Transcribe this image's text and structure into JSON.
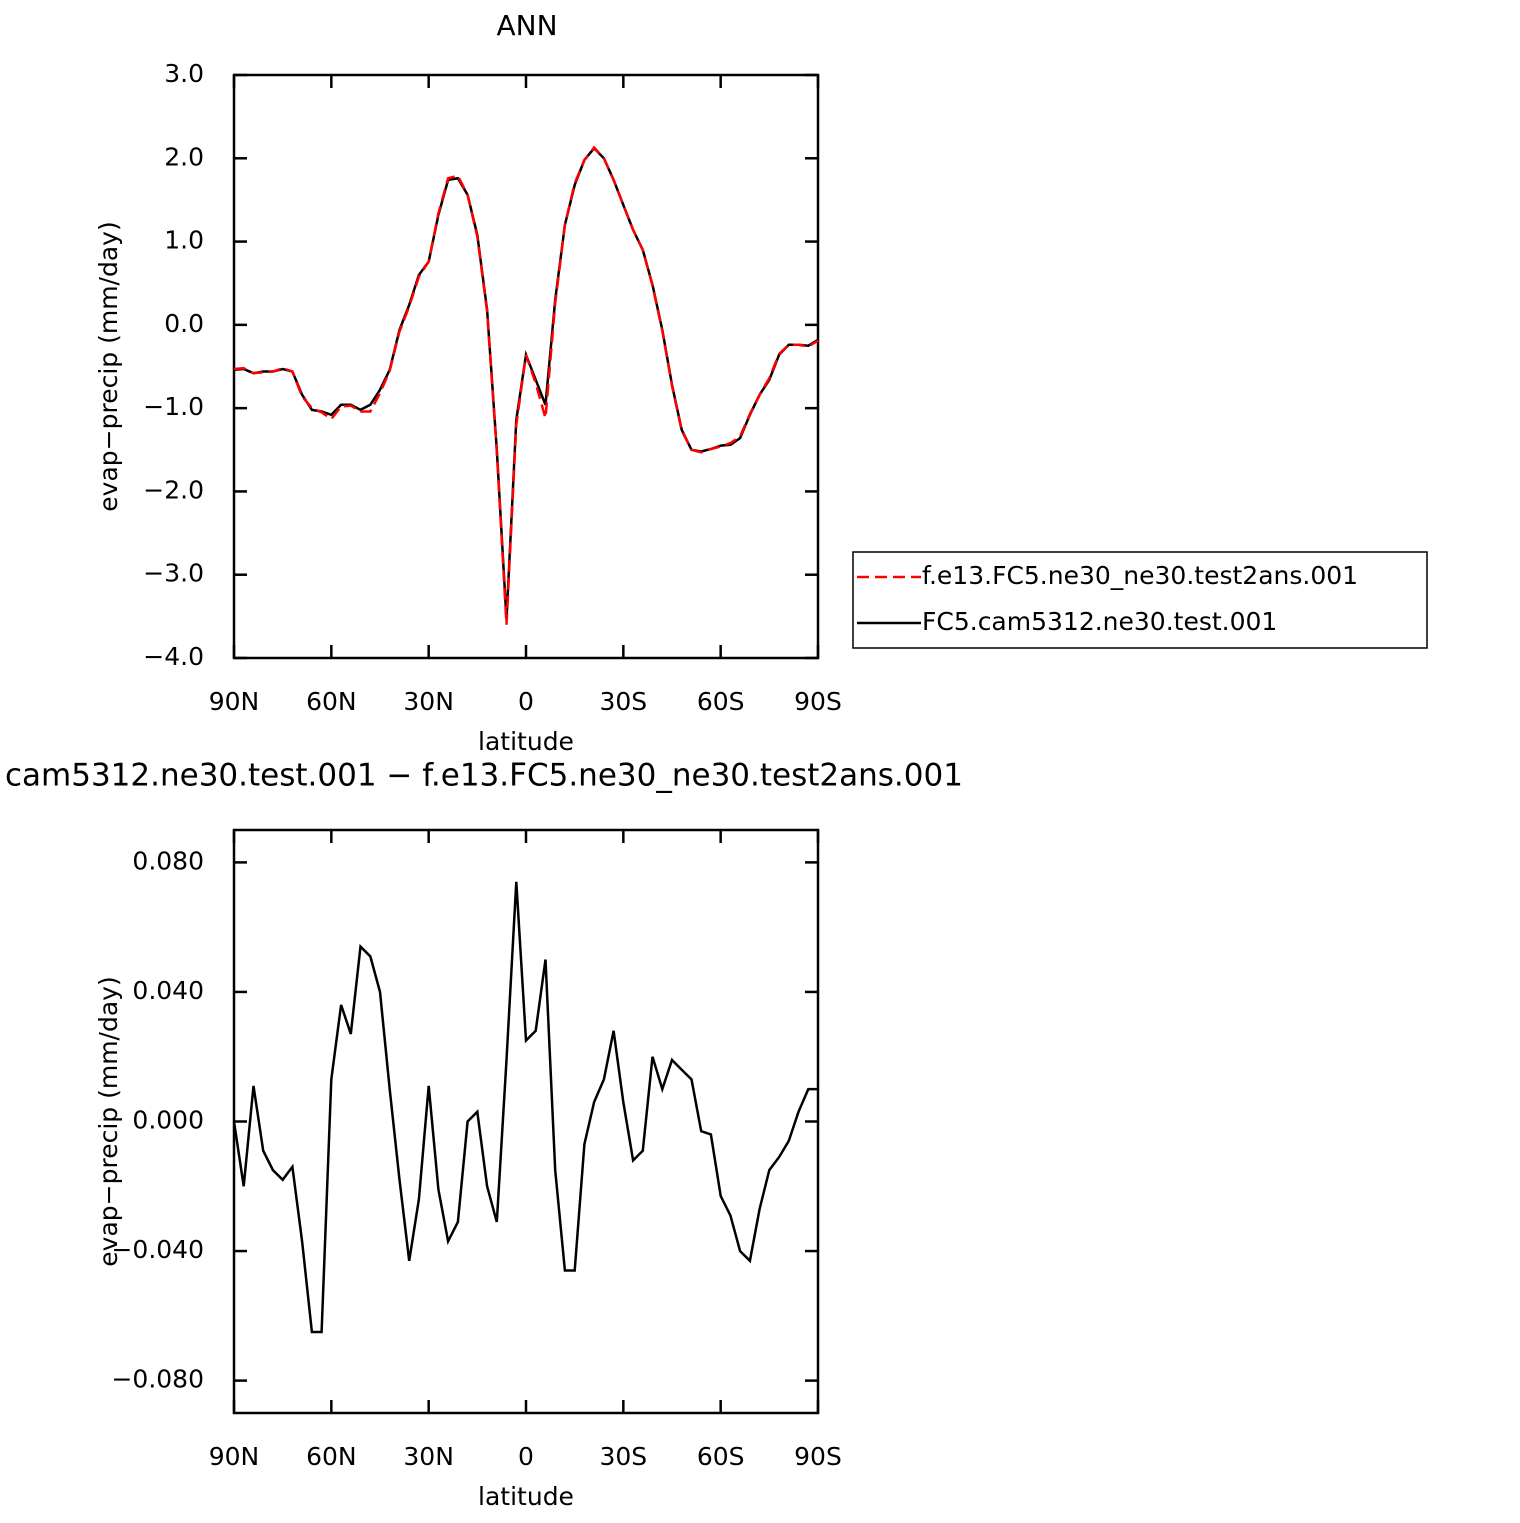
{
  "chart_data": [
    {
      "type": "line",
      "title": "ANN",
      "xlabel": "latitude",
      "ylabel": "evap−precip (mm/day)",
      "x": [
        90,
        87,
        84,
        81,
        78,
        75,
        72,
        69,
        66,
        63,
        60,
        57,
        54,
        51,
        48,
        45,
        42,
        39,
        36,
        33,
        30,
        27,
        24,
        21,
        18,
        15,
        12,
        9,
        6,
        3,
        0,
        -3,
        -6,
        -9,
        -12,
        -15,
        -18,
        -21,
        -24,
        -27,
        -30,
        -33,
        -36,
        -39,
        -42,
        -45,
        -48,
        -51,
        -54,
        -57,
        -60,
        -63,
        -66,
        -69,
        -72,
        -75,
        -78,
        -81,
        -84,
        -87,
        -90
      ],
      "series": [
        {
          "name": "f.e13.FC5.ne30_ne30.test2ans.001",
          "color": "#ff0000",
          "linestyle": "dashed",
          "values": [
            -0.53,
            -0.52,
            -0.58,
            -0.57,
            -0.56,
            -0.52,
            -0.56,
            -0.86,
            -1.0,
            -1.05,
            -1.13,
            -0.98,
            -0.97,
            -1.04,
            -1.04,
            -0.82,
            -0.55,
            -0.08,
            0.22,
            0.58,
            0.76,
            1.34,
            1.76,
            1.79,
            1.56,
            1.06,
            0.16,
            -1.52,
            -3.6,
            -1.2,
            -0.36,
            -0.7,
            -1.12,
            0.26,
            1.2,
            1.7,
            1.98,
            2.13,
            2.0,
            1.74,
            1.44,
            1.14,
            0.9,
            0.47,
            -0.07,
            -0.73,
            -1.27,
            -1.5,
            -1.53,
            -1.49,
            -1.46,
            -1.42,
            -1.34,
            -1.07,
            -0.84,
            -0.64,
            -0.35,
            -0.24,
            -0.24,
            -0.26,
            -0.19
          ]
        },
        {
          "name": "FC5.cam5312.ne30.test.001",
          "color": "#000000",
          "linestyle": "solid",
          "values": [
            -0.54,
            -0.53,
            -0.58,
            -0.56,
            -0.56,
            -0.53,
            -0.56,
            -0.84,
            -1.02,
            -1.04,
            -1.08,
            -0.96,
            -0.96,
            -1.02,
            -0.96,
            -0.78,
            -0.54,
            -0.06,
            0.24,
            0.6,
            0.76,
            1.32,
            1.74,
            1.76,
            1.56,
            1.08,
            0.18,
            -1.5,
            -3.54,
            -1.14,
            -0.36,
            -0.66,
            -0.96,
            0.3,
            1.2,
            1.68,
            1.98,
            2.12,
            2.0,
            1.74,
            1.44,
            1.14,
            0.9,
            0.48,
            -0.06,
            -0.72,
            -1.26,
            -1.5,
            -1.52,
            -1.49,
            -1.45,
            -1.44,
            -1.36,
            -1.08,
            -0.84,
            -0.66,
            -0.36,
            -0.24,
            -0.24,
            -0.25,
            -0.18
          ]
        }
      ],
      "xlim": [
        90,
        -90
      ],
      "xticks": [
        {
          "value": 90,
          "label": "90N"
        },
        {
          "value": 60,
          "label": "60N"
        },
        {
          "value": 30,
          "label": "30N"
        },
        0,
        {
          "value": -30,
          "label": "30S"
        },
        {
          "value": -60,
          "label": "60S"
        },
        {
          "value": -90,
          "label": "90S"
        }
      ],
      "ylim": [
        -4,
        3
      ],
      "yticks": [
        {
          "value": 3,
          "label": "3.0"
        },
        {
          "value": 2,
          "label": "2.0"
        },
        {
          "value": 1,
          "label": "1.0"
        },
        {
          "value": 0,
          "label": "0.0"
        },
        {
          "value": -1,
          "label": "−1.0"
        },
        {
          "value": -2,
          "label": "−2.0"
        },
        {
          "value": -3,
          "label": "−3.0"
        },
        {
          "value": -4,
          "label": "−4.0"
        }
      ],
      "legend": "right"
    },
    {
      "type": "line",
      "title": "cam5312.ne30.test.001 − f.e13.FC5.ne30_ne30.test2ans.001",
      "xlabel": "latitude",
      "ylabel": "evap−precip (mm/day)",
      "x": [
        90,
        87,
        84,
        81,
        78,
        75,
        72,
        69,
        66,
        63,
        60,
        57,
        54,
        51,
        48,
        45,
        42,
        39,
        36,
        33,
        30,
        27,
        24,
        21,
        18,
        15,
        12,
        9,
        6,
        3,
        0,
        -3,
        -6,
        -9,
        -12,
        -15,
        -18,
        -21,
        -24,
        -27,
        -30,
        -33,
        -36,
        -39,
        -42,
        -45,
        -48,
        -51,
        -54,
        -57,
        -60,
        -63,
        -66,
        -69,
        -72,
        -75,
        -78,
        -81,
        -84,
        -87,
        -90
      ],
      "series": [
        {
          "color": "#000000",
          "linestyle": "solid",
          "values": [
            0,
            -0.02,
            0.011,
            -0.009,
            -0.015,
            -0.018,
            -0.014,
            -0.037,
            -0.065,
            -0.065,
            0.013,
            0.036,
            0.027,
            0.054,
            0.051,
            0.04,
            0.01,
            -0.018,
            -0.043,
            -0.024,
            0.011,
            -0.021,
            -0.037,
            -0.031,
            0,
            0.003,
            -0.02,
            -0.031,
            0.019,
            0.074,
            0.025,
            0.028,
            0.05,
            -0.015,
            -0.046,
            -0.046,
            -0.007,
            0.006,
            0.013,
            0.028,
            0.006,
            -0.012,
            -0.009,
            0.02,
            0.01,
            0.019,
            0.016,
            0.013,
            -0.003,
            -0.004,
            -0.023,
            -0.029,
            -0.04,
            -0.043,
            -0.027,
            -0.015,
            -0.011,
            -0.006,
            0.003,
            0.01,
            0.01
          ]
        }
      ],
      "xlim": [
        90,
        -90
      ],
      "xticks": [
        {
          "value": 90,
          "label": "90N"
        },
        {
          "value": 60,
          "label": "60N"
        },
        {
          "value": 30,
          "label": "30N"
        },
        0,
        {
          "value": -30,
          "label": "30S"
        },
        {
          "value": -60,
          "label": "60S"
        },
        {
          "value": -90,
          "label": "90S"
        }
      ],
      "ylim": [
        -0.09,
        0.09
      ],
      "yticks": [
        {
          "value": 0.08,
          "label": "0.080"
        },
        {
          "value": 0.04,
          "label": "0.040"
        },
        {
          "value": 0,
          "label": "0.000"
        },
        {
          "value": -0.04,
          "label": "−0.040"
        },
        {
          "value": -0.08,
          "label": "−0.080"
        }
      ]
    }
  ]
}
